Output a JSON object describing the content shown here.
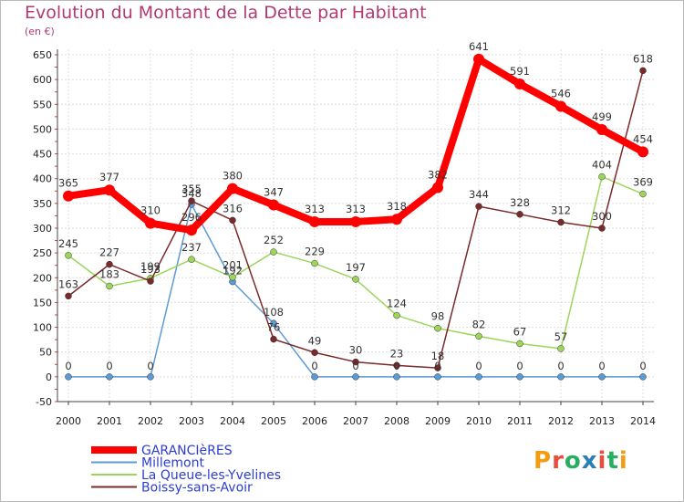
{
  "header": {
    "title": "Evolution du Montant de la Dette par Habitant",
    "subtitle": "(en €)"
  },
  "logo": {
    "text": "Proxiti",
    "colors": [
      "#f39c12",
      "#e74c3c",
      "#27ae60",
      "#2980b9",
      "#e74c3c",
      "#27ae60",
      "#f39c12"
    ]
  },
  "chart_data": {
    "type": "line",
    "x": [
      "2000",
      "2001",
      "2002",
      "2003",
      "2004",
      "2005",
      "2006",
      "2007",
      "2008",
      "2009",
      "2010",
      "2011",
      "2012",
      "2013",
      "2014"
    ],
    "ylim": [
      -50,
      650
    ],
    "yticks": [
      "-50",
      "0",
      "50",
      "100",
      "150",
      "200",
      "250",
      "300",
      "350",
      "400",
      "450",
      "500",
      "550",
      "600",
      "650"
    ],
    "ytick_values": [
      -50,
      0,
      50,
      100,
      150,
      200,
      250,
      300,
      350,
      400,
      450,
      500,
      550,
      600,
      650
    ],
    "grid": true,
    "legend_position": "bottom-left",
    "series": [
      {
        "name": "GARANCIèRES",
        "color": "#ff0000",
        "values": [
          365,
          377,
          310,
          296,
          380,
          347,
          313,
          313,
          318,
          382,
          641,
          591,
          546,
          499,
          454
        ],
        "labels": [
          "365",
          "377",
          "310",
          "296",
          "380",
          "347",
          "313",
          "313",
          "318",
          "382",
          "641",
          "591",
          "546",
          "499",
          "454"
        ]
      },
      {
        "name": "Millemont",
        "color": "#5b9bd5",
        "values": [
          0,
          0,
          0,
          348,
          192,
          108,
          0,
          0,
          0,
          0,
          0,
          0,
          0,
          0,
          0
        ],
        "labels": [
          "0",
          "0",
          "0",
          "348",
          "192",
          "108",
          "0",
          "0",
          "0",
          "0",
          "0",
          "0",
          "0",
          "0",
          "0"
        ]
      },
      {
        "name": "La Queue-les-Yvelines",
        "color": "#9bd65b",
        "values": [
          245,
          183,
          199,
          237,
          201,
          252,
          229,
          197,
          124,
          98,
          82,
          67,
          57,
          404,
          369
        ],
        "labels": [
          "245",
          "183",
          "199",
          "237",
          "201",
          "252",
          "229",
          "197",
          "124",
          "98",
          "82",
          "67",
          "57",
          "404",
          "369"
        ]
      },
      {
        "name": "Boissy-sans-Avoir",
        "color": "#7a2a2a",
        "values": [
          163,
          227,
          193,
          355,
          316,
          76,
          49,
          30,
          23,
          18,
          344,
          328,
          312,
          300,
          618
        ],
        "labels": [
          "163",
          "227",
          "193",
          "355",
          "316",
          "76",
          "49",
          "30",
          "23",
          "18",
          "344",
          "328",
          "312",
          "300",
          "618"
        ]
      }
    ]
  }
}
